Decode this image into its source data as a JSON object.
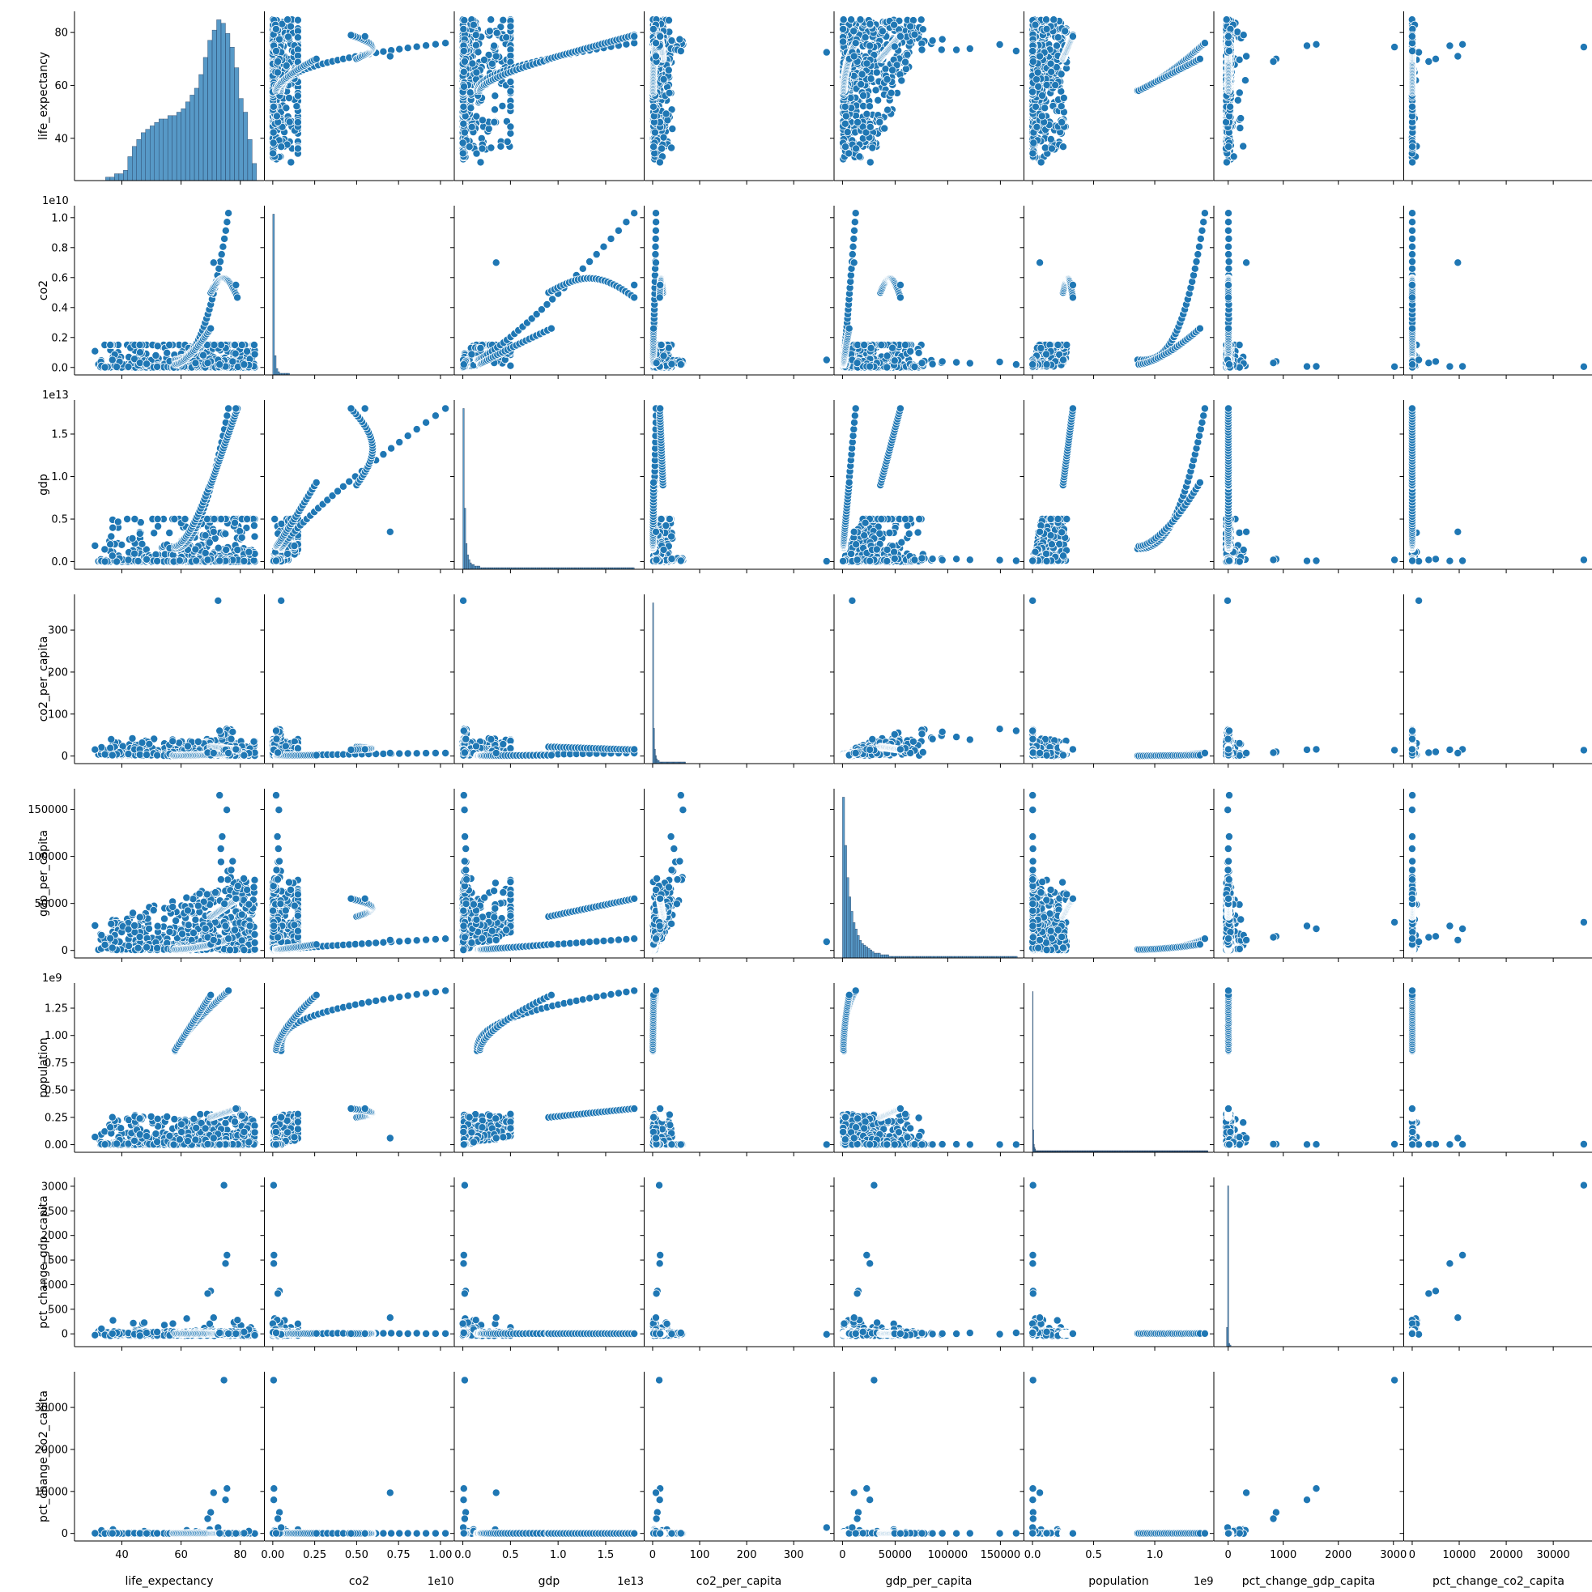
{
  "chart_data": {
    "type": "scatter",
    "layout": "pairplot",
    "style": {
      "marker_color": "#1f77b4",
      "edge_color": "#ffffff",
      "axis_color": "#000000"
    },
    "variables": [
      "life_expectancy",
      "co2",
      "gdp",
      "co2_per_capita",
      "gdp_per_capita",
      "population",
      "pct_change_gdp_capita",
      "pct_change_co2_capita"
    ],
    "axes": {
      "life_expectancy": {
        "range": [
          24,
          88
        ],
        "ticks": [
          40,
          60,
          80
        ],
        "tick_labels": [
          "40",
          "60",
          "80"
        ],
        "offset_text": ""
      },
      "co2": {
        "range": [
          -0.05,
          1.08
        ],
        "ticks": [
          0,
          0.25,
          0.5,
          0.75,
          1.0
        ],
        "tick_labels": [
          "0.00",
          "0.25",
          "0.50",
          "0.75",
          "1.00"
        ],
        "offset_text": "1e10",
        "y_ticks": [
          0,
          0.2,
          0.4,
          0.6,
          0.8,
          1.0
        ],
        "y_tick_labels": [
          "0.0",
          "0.2",
          "0.4",
          "0.6",
          "0.8",
          "1.0"
        ]
      },
      "gdp": {
        "range": [
          -0.09,
          1.9
        ],
        "ticks": [
          0,
          0.5,
          1.0,
          1.5
        ],
        "tick_labels": [
          "0.0",
          "0.5",
          "1.0",
          "1.5"
        ],
        "offset_text": "1e13"
      },
      "co2_per_capita": {
        "range": [
          -18,
          385
        ],
        "ticks": [
          0,
          100,
          200,
          300
        ],
        "tick_labels": [
          "0",
          "100",
          "200",
          "300"
        ],
        "offset_text": ""
      },
      "gdp_per_capita": {
        "range": [
          -8000,
          172000
        ],
        "ticks": [
          0,
          50000,
          100000,
          150000
        ],
        "tick_labels": [
          "0",
          "50000",
          "100000",
          "150000"
        ],
        "offset_text": ""
      },
      "population": {
        "range": [
          -0.07,
          1.48
        ],
        "ticks": [
          0,
          0.5,
          1.0
        ],
        "tick_labels": [
          "0.0",
          "0.5",
          "1.0"
        ],
        "offset_text": "1e9",
        "y_ticks": [
          0,
          0.25,
          0.5,
          0.75,
          1.0,
          1.25
        ],
        "y_tick_labels": [
          "0.00",
          "0.25",
          "0.50",
          "0.75",
          "1.00",
          "1.25"
        ]
      },
      "pct_change_gdp_capita": {
        "range": [
          -260,
          3180
        ],
        "ticks": [
          0,
          1000,
          2000,
          3000
        ],
        "tick_labels": [
          "0",
          "1000",
          "2000",
          "3000"
        ],
        "offset_text": "",
        "y_ticks": [
          0,
          500,
          1000,
          1500,
          2000,
          2500,
          3000
        ],
        "y_tick_labels": [
          "0",
          "500",
          "1000",
          "1500",
          "2000",
          "2500",
          "3000"
        ]
      },
      "pct_change_co2_capita": {
        "range": [
          -1800,
          38500
        ],
        "ticks": [
          0,
          10000,
          20000,
          30000
        ],
        "tick_labels": [
          "0",
          "10000",
          "20000",
          "30000"
        ],
        "offset_text": ""
      }
    },
    "histograms": {
      "life_expectancy": {
        "bin_start": 24,
        "bin_width": 1.5,
        "counts": [
          0,
          0,
          0,
          0,
          0,
          0,
          0,
          1,
          1,
          2,
          2,
          3,
          7,
          10,
          12,
          14,
          15,
          16,
          17,
          18,
          18,
          19,
          19,
          20,
          21,
          23,
          25,
          27,
          31,
          36,
          41,
          44,
          47,
          46,
          43,
          39,
          33,
          24,
          20,
          12,
          5
        ]
      },
      "co2": {
        "bin_start": 0,
        "bin_width": 0.01,
        "counts": [
          100,
          12,
          4,
          2,
          1,
          1,
          1,
          1,
          1,
          1
        ]
      },
      "gdp": {
        "bin_start": 0,
        "bin_width": 0.015,
        "counts": [
          100,
          38,
          16,
          9,
          6,
          4,
          3,
          3,
          2,
          2,
          2,
          2,
          1,
          1,
          1,
          1,
          1,
          1,
          1,
          1,
          1,
          1,
          1,
          1,
          1,
          1,
          1,
          1,
          1,
          1,
          1,
          1,
          1,
          1,
          1,
          1,
          1,
          1,
          1,
          1,
          1,
          1,
          1,
          1,
          1,
          1,
          1,
          1,
          1,
          1,
          1,
          1,
          1,
          1,
          1,
          1,
          1,
          1,
          1,
          1,
          1,
          1,
          1,
          1,
          1,
          1,
          1,
          1,
          1,
          1,
          1,
          1,
          1,
          1,
          1,
          1,
          1,
          1,
          1,
          1,
          1,
          1,
          1,
          1,
          1,
          1,
          1,
          1,
          1,
          1,
          1,
          1,
          1,
          1,
          1,
          1,
          1,
          1,
          1,
          1,
          1,
          1,
          1,
          1,
          1,
          1,
          1,
          1,
          1,
          1,
          1,
          1,
          1,
          1,
          1,
          1,
          1,
          1,
          1,
          1
        ]
      },
      "co2_per_capita": {
        "bin_start": 0,
        "bin_width": 2,
        "counts": [
          100,
          22,
          9,
          5,
          3,
          2,
          2,
          1,
          1,
          1,
          1,
          1,
          1,
          1,
          1,
          1,
          1,
          1,
          1,
          1,
          1,
          1,
          1,
          1,
          1,
          1,
          1,
          1,
          1,
          1,
          1,
          1,
          1,
          1,
          1
        ]
      },
      "gdp_per_capita": {
        "bin_start": 0,
        "bin_width": 2000,
        "counts": [
          100,
          70,
          50,
          38,
          29,
          22,
          18,
          14,
          11,
          9,
          8,
          7,
          6,
          5,
          4,
          3,
          3,
          3,
          2,
          2,
          2,
          2,
          1,
          1,
          1,
          1,
          1,
          1,
          1,
          1,
          1,
          1,
          1,
          1,
          1,
          1,
          1,
          1,
          1,
          1,
          1,
          1,
          1,
          1,
          1,
          1,
          1,
          1,
          1,
          1,
          1,
          1,
          1,
          1,
          1,
          1,
          1,
          1,
          1,
          1,
          1,
          1,
          1,
          1,
          1,
          1,
          1,
          1,
          1,
          1,
          1,
          1,
          1,
          1,
          1,
          1,
          1,
          1,
          1,
          1,
          1,
          1,
          1
        ]
      },
      "population": {
        "bin_start": 0,
        "bin_width": 0.005,
        "counts": [
          100,
          14,
          5,
          3,
          2,
          1,
          1,
          1,
          1,
          1,
          1,
          1,
          1,
          1,
          1,
          1,
          1,
          1,
          1,
          1,
          1,
          1,
          1,
          1,
          1,
          1,
          1,
          1,
          1,
          1,
          1,
          1,
          1,
          1,
          1,
          1,
          1,
          1,
          1,
          1,
          1,
          1,
          1,
          1,
          1,
          1,
          1,
          1,
          1,
          1,
          1,
          1,
          1,
          1,
          1,
          1,
          1,
          1,
          1,
          1,
          1,
          1,
          1,
          1,
          1,
          1,
          1,
          1,
          1,
          1,
          1,
          1,
          1,
          1,
          1,
          1,
          1,
          1,
          1,
          1,
          1,
          1,
          1,
          1,
          1,
          1,
          1,
          1,
          1,
          1,
          1,
          1,
          1,
          1,
          1,
          1,
          1,
          1,
          1,
          1,
          1,
          1,
          1,
          1,
          1,
          1,
          1,
          1,
          1,
          1,
          1,
          1,
          1,
          1,
          1,
          1,
          1,
          1,
          1,
          1,
          1,
          1,
          1,
          1,
          1,
          1,
          1,
          1,
          1,
          1,
          1,
          1,
          1,
          1,
          1,
          1,
          1,
          1,
          1,
          1,
          1,
          1,
          1,
          1,
          1,
          1,
          1,
          1,
          1,
          1,
          1,
          1,
          1,
          1,
          1,
          1,
          1,
          1,
          1,
          1,
          1,
          1,
          1,
          1,
          1,
          1,
          1,
          1,
          1,
          1,
          1,
          1,
          1,
          1,
          1,
          1,
          1,
          1,
          1,
          1,
          1,
          1,
          1,
          1,
          1,
          1,
          1,
          1,
          1,
          1,
          1,
          1,
          1,
          1,
          1,
          1,
          1,
          1,
          1,
          1,
          1,
          1,
          1,
          1,
          1,
          1,
          1,
          1,
          1,
          1,
          1,
          1,
          1,
          1,
          1,
          1,
          1,
          1,
          1,
          1,
          1,
          1,
          1,
          1,
          1,
          1,
          1,
          1,
          1,
          1,
          1,
          1,
          1,
          1,
          1,
          1,
          1,
          1,
          1,
          1,
          1,
          1,
          1,
          1,
          1,
          1,
          1,
          1,
          1,
          1,
          1,
          1,
          1,
          1,
          1,
          1,
          1,
          1,
          1,
          1,
          1,
          1,
          1,
          1,
          1,
          1,
          1,
          1,
          1,
          1,
          1,
          1,
          1,
          1,
          1,
          1,
          1,
          1,
          1,
          1,
          1,
          1,
          1,
          1,
          1,
          1,
          1
        ]
      },
      "pct_change_gdp_capita": {
        "bin_start": -50,
        "bin_width": 20,
        "counts": [
          0,
          12,
          100,
          2,
          1,
          0,
          0,
          0,
          0,
          0,
          0,
          0,
          0,
          0,
          0,
          0,
          0,
          0,
          0,
          0,
          0,
          0,
          0,
          0,
          0,
          0,
          0,
          0,
          0,
          0,
          0,
          0,
          0,
          0,
          0,
          0,
          0,
          0,
          0,
          0,
          0,
          0,
          0,
          0,
          0,
          0,
          0,
          0,
          0,
          0,
          0,
          0,
          0,
          0,
          0,
          0,
          0,
          0,
          0,
          0,
          0,
          0,
          0,
          0,
          0,
          0,
          0,
          0,
          0,
          0,
          0,
          0,
          0,
          0,
          0,
          0,
          0,
          0,
          0,
          0,
          0,
          0,
          0,
          0,
          0,
          0,
          0,
          0,
          0,
          0,
          0,
          0,
          0,
          0,
          0,
          0,
          0,
          0,
          0,
          0,
          0,
          0,
          0,
          0,
          0,
          0,
          0,
          0,
          0,
          0,
          0,
          0,
          0,
          0,
          0,
          0,
          0,
          0,
          0,
          0,
          0,
          0,
          0,
          0,
          0,
          0,
          0,
          0,
          0,
          0,
          0,
          0,
          0,
          0,
          0,
          0,
          0,
          0,
          0,
          0,
          0,
          0,
          0,
          0,
          0,
          0,
          0,
          0,
          0,
          0,
          0,
          0,
          0,
          0
        ]
      },
      "pct_change_co2_capita": {
        "bin_start": 0,
        "bin_width": 200,
        "counts": []
      }
    },
    "key_observations": [
      {
        "life_expectancy": 72.5,
        "co2": 0.05,
        "gdp": 0.004,
        "co2_per_capita": 370,
        "gdp_per_capita": 9200,
        "population": 0.001,
        "pct_change_gdp_capita": -10,
        "pct_change_co2_capita": 1400
      },
      {
        "life_expectancy": 74.5,
        "co2": 0.005,
        "gdp": 0.02,
        "co2_per_capita": 14,
        "gdp_per_capita": 30000,
        "population": 0.004,
        "pct_change_gdp_capita": 3020,
        "pct_change_co2_capita": 36500
      },
      {
        "life_expectancy": 75.5,
        "co2": 0.007,
        "gdp": 0.01,
        "co2_per_capita": 16,
        "gdp_per_capita": 23000,
        "population": 0.003,
        "pct_change_gdp_capita": 1600,
        "pct_change_co2_capita": 10700
      },
      {
        "life_expectancy": 75.0,
        "co2": 0.006,
        "gdp": 0.008,
        "co2_per_capita": 15,
        "gdp_per_capita": 26000,
        "population": 0.002,
        "pct_change_gdp_capita": 1430,
        "pct_change_co2_capita": 8000
      },
      {
        "life_expectancy": 70.0,
        "co2": 0.04,
        "gdp": 0.03,
        "co2_per_capita": 10,
        "gdp_per_capita": 15000,
        "population": 0.005,
        "pct_change_gdp_capita": 870,
        "pct_change_co2_capita": 5000
      },
      {
        "life_expectancy": 69.0,
        "co2": 0.03,
        "gdp": 0.02,
        "co2_per_capita": 8,
        "gdp_per_capita": 14000,
        "population": 0.005,
        "pct_change_gdp_capita": 820,
        "pct_change_co2_capita": 3500
      },
      {
        "life_expectancy": 71.0,
        "co2": 0.7,
        "gdp": 0.35,
        "co2_per_capita": 7,
        "gdp_per_capita": 11000,
        "population": 0.06,
        "pct_change_gdp_capita": 330,
        "pct_change_co2_capita": 9700
      },
      {
        "life_expectancy": 73.0,
        "co2": 0.02,
        "gdp": 0.01,
        "co2_per_capita": 60,
        "gdp_per_capita": 165000,
        "population": 0.001,
        "pct_change_gdp_capita": 20,
        "pct_change_co2_capita": 30
      },
      {
        "life_expectancy": 76.0,
        "co2": 1.03,
        "gdp": 1.8,
        "co2_per_capita": 7,
        "gdp_per_capita": 12500,
        "population": 1.41,
        "pct_change_gdp_capita": 5,
        "pct_change_co2_capita": 3
      },
      {
        "life_expectancy": 78.5,
        "co2": 0.55,
        "gdp": 1.8,
        "co2_per_capita": 16,
        "gdp_per_capita": 55000,
        "population": 0.33,
        "pct_change_gdp_capita": 4,
        "pct_change_co2_capita": -2
      }
    ]
  }
}
